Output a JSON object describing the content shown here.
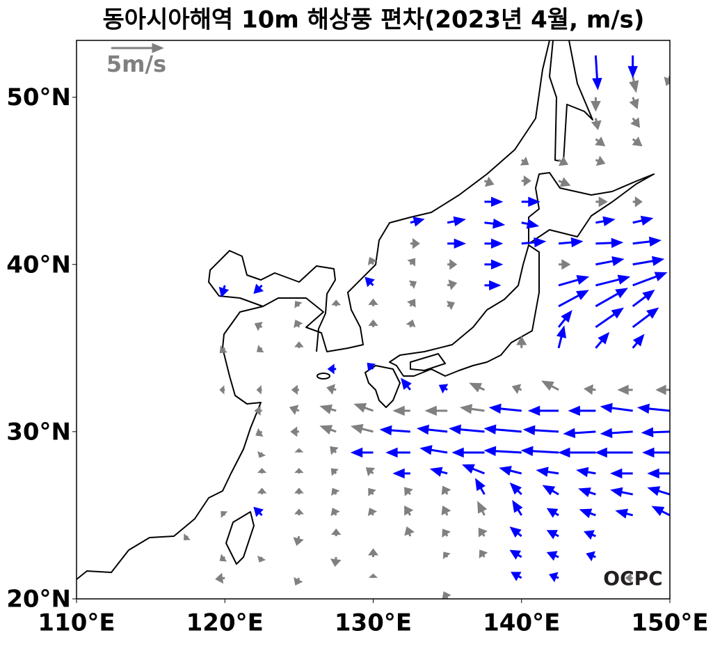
{
  "chart_data": {
    "type": "quiver",
    "title": "동아시아해역 10m 해상풍 편차(2023년 4월, m/s)",
    "xlim": [
      110,
      150
    ],
    "ylim": [
      20,
      53.4
    ],
    "xticks": [
      {
        "value": 110,
        "label": "110°E"
      },
      {
        "value": 120,
        "label": "120°E"
      },
      {
        "value": 130,
        "label": "130°E"
      },
      {
        "value": 140,
        "label": "140°E"
      },
      {
        "value": 150,
        "label": "150°E"
      }
    ],
    "yticks": [
      {
        "value": 20,
        "label": "20°N"
      },
      {
        "value": 30,
        "label": "30°N"
      },
      {
        "value": 40,
        "label": "40°N"
      },
      {
        "value": 50,
        "label": "50°N"
      }
    ],
    "reference_vector": {
      "label": "5m/s",
      "u": 5,
      "color": "#808080"
    },
    "watermark": "OCPC",
    "series": [
      {
        "color": "#808080",
        "x": [
          147.5,
          150,
          145,
          147.5,
          145,
          147.5,
          145,
          147.5,
          142.5,
          145,
          140,
          137.5,
          140,
          142.5,
          145,
          147.5,
          132.5,
          130,
          132.5,
          135,
          142.5,
          132.5,
          135,
          125,
          127.5,
          130,
          132.5,
          135,
          122.5,
          125,
          130,
          132.5,
          140,
          122.5,
          125,
          120,
          120,
          122.5,
          125,
          127.5,
          137.5,
          140,
          142.5,
          145,
          147.5,
          150,
          122.5,
          125,
          127.5,
          130,
          132.5,
          135,
          137.5,
          122.5,
          125,
          127.5,
          130,
          122.5,
          125,
          127.5,
          122.5,
          125,
          127.5,
          130,
          122.5,
          125,
          127.5,
          130,
          132.5,
          135,
          120,
          125,
          127.5,
          130,
          132.5,
          135,
          137.5,
          117.5,
          125,
          127.5,
          132.5,
          135,
          137.5,
          120,
          122.5,
          127.5,
          130,
          135,
          137.5,
          120,
          125,
          130,
          147.5,
          125,
          137.5,
          135
        ],
        "y": [
          51.25,
          51.25,
          50,
          50,
          48.75,
          48.75,
          47.5,
          47.5,
          46.25,
          46.25,
          46.25,
          45,
          45,
          45,
          43.75,
          43.75,
          41.25,
          40,
          40,
          40,
          40,
          38.75,
          38.75,
          37.5,
          37.5,
          37.5,
          37.5,
          37.5,
          36.25,
          36.25,
          36.25,
          36.25,
          35,
          35,
          35,
          35,
          32.5,
          32.5,
          32.5,
          32.5,
          32.5,
          32.5,
          32.5,
          32.5,
          32.5,
          32.5,
          31.25,
          31.25,
          31.25,
          31.25,
          31.25,
          31.25,
          31.25,
          30,
          30,
          30,
          30,
          28.75,
          28.75,
          28.75,
          27.5,
          27.5,
          27.5,
          27.5,
          26.25,
          26.25,
          26.25,
          26.25,
          26.25,
          26.25,
          25,
          25,
          25,
          25,
          25,
          25,
          25,
          23.75,
          23.75,
          23.75,
          23.75,
          23.75,
          23.75,
          22.5,
          22.5,
          22.5,
          22.5,
          22.5,
          22.5,
          21.25,
          21.25,
          21.25,
          21.25,
          20,
          20,
          20
        ],
        "u": [
          0.3,
          -0.3,
          0,
          0.4,
          0.2,
          0.6,
          0.8,
          0.8,
          0.8,
          0.8,
          0.6,
          0.8,
          0.8,
          1,
          1,
          0.8,
          0.8,
          -0.3,
          0.4,
          0.8,
          1,
          0.5,
          0.8,
          -0.3,
          0,
          0,
          0.4,
          0.6,
          -0.6,
          -0.3,
          0,
          0.2,
          0,
          -0.4,
          0,
          -0.4,
          -0.4,
          -0.4,
          -0.6,
          -0.8,
          -1.3,
          -0.8,
          -1.5,
          -1,
          -1.3,
          -1.2,
          -0.6,
          -0.8,
          -1.4,
          -1.7,
          -1.5,
          -2,
          -2.2,
          -0.5,
          -0.7,
          -1.4,
          -2,
          -0.2,
          0,
          -0.5,
          0,
          0,
          -0.4,
          -0.6,
          0,
          0,
          -0.3,
          -0.4,
          -0.5,
          -0.4,
          -0.3,
          0,
          -0.3,
          -0.3,
          -0.5,
          -0.4,
          -0.6,
          -0.3,
          -0.2,
          0,
          -0.3,
          -0.4,
          -0.5,
          -0.4,
          -0.2,
          -0.1,
          0,
          -0.3,
          -0.4,
          -0.8,
          -0.3,
          0,
          -0.6,
          -0.2,
          -0.1,
          -0.3
        ],
        "v": [
          -1.4,
          -0.8,
          -1.2,
          -1,
          -1,
          -0.8,
          -0.6,
          -0.6,
          -0.4,
          -0.3,
          -0.4,
          -0.3,
          0,
          -0.4,
          0,
          0,
          0,
          0.6,
          0.5,
          0,
          0,
          0.3,
          0.2,
          0.4,
          0.5,
          0.6,
          0.6,
          0.3,
          0.3,
          0.6,
          0.6,
          0.6,
          1,
          -0.3,
          0.5,
          -0.4,
          0,
          0,
          0,
          0.2,
          0.6,
          0.3,
          0.8,
          0.1,
          0,
          0,
          0,
          0.3,
          0.4,
          0.6,
          0,
          0,
          0.3,
          -0.3,
          0,
          0.5,
          0.5,
          -0.4,
          0.3,
          0.5,
          0.4,
          0.4,
          0.4,
          0.5,
          0.5,
          0.5,
          0.5,
          0.5,
          0.6,
          0.7,
          0.3,
          0.5,
          0.6,
          0.6,
          0.8,
          0.8,
          1.2,
          -0.3,
          -0.8,
          0.6,
          0.8,
          0.6,
          0.7,
          -0.3,
          -0.4,
          -0.8,
          0.7,
          0.4,
          0.6,
          -0.1,
          -0.6,
          0.3,
          0,
          -0.8,
          -0.5,
          0.6
        ]
      },
      {
        "color": "#0000ff",
        "x": [
          145,
          147.5,
          137.5,
          140,
          132.5,
          135,
          137.5,
          140,
          145,
          147.5,
          135,
          137.5,
          140,
          142.5,
          145,
          147.5,
          137.5,
          145,
          147.5,
          120,
          122.5,
          130,
          137.5,
          142.5,
          145,
          147.5,
          142.5,
          145,
          147.5,
          142.5,
          145,
          147.5,
          142.5,
          145,
          147.5,
          130,
          127.5,
          132.5,
          135,
          140,
          142.5,
          145,
          147.5,
          150,
          132.5,
          135,
          137.5,
          140,
          142.5,
          145,
          147.5,
          150,
          130,
          132.5,
          135,
          137.5,
          140,
          142.5,
          145,
          147.5,
          150,
          132.5,
          135,
          137.5,
          140,
          142.5,
          145,
          147.5,
          150,
          137.5,
          140,
          142.5,
          145,
          147.5,
          150,
          122.5,
          140,
          142.5,
          145,
          147.5,
          150,
          140,
          142.5,
          145,
          140,
          142.5,
          145,
          140,
          142.5
        ],
        "y": [
          52.5,
          52.5,
          43.75,
          43.75,
          42.5,
          42.5,
          42.5,
          42.5,
          42.5,
          42.5,
          41.25,
          41.25,
          41.25,
          41.25,
          41.25,
          41.25,
          40,
          40,
          40,
          38.75,
          38.75,
          38.75,
          38.75,
          38.75,
          38.75,
          38.75,
          37.5,
          37.5,
          37.5,
          36.25,
          36.25,
          36.25,
          35,
          35,
          35,
          33.75,
          33.75,
          32.5,
          32.5,
          31.25,
          31.25,
          31.25,
          31.25,
          31.25,
          30,
          30,
          30,
          30,
          30,
          30,
          30,
          30,
          28.75,
          28.75,
          28.75,
          28.75,
          28.75,
          28.75,
          28.75,
          28.75,
          28.75,
          27.5,
          27.5,
          27.5,
          27.5,
          27.5,
          27.5,
          27.5,
          27.5,
          26.25,
          26.25,
          26.25,
          26.25,
          26.25,
          26.25,
          25,
          25,
          25,
          25,
          25,
          25,
          23.75,
          23.75,
          23.75,
          22.5,
          22.5,
          22.5,
          21.25,
          21.25
        ],
        "u": [
          0.2,
          0,
          1.6,
          1.6,
          1.2,
          1.6,
          1.8,
          1.5,
          1.7,
          1.8,
          1.6,
          1.6,
          2.2,
          2.2,
          2.5,
          2.6,
          1.6,
          2.6,
          2.9,
          -0.3,
          -0.7,
          -0.7,
          1.4,
          2.8,
          3.2,
          3.2,
          2.8,
          3,
          2,
          1.2,
          2.6,
          2.4,
          0.5,
          1.2,
          1,
          -0.5,
          -0.7,
          -0.8,
          -0.7,
          -3,
          -2.8,
          -2.5,
          -3,
          -3,
          -2.8,
          -2.8,
          -3.3,
          -3.5,
          -3.3,
          -3,
          -3,
          -2.6,
          -2,
          -2.2,
          -2.5,
          -3,
          -3.5,
          -3.5,
          -3.5,
          -3.5,
          -2.5,
          -1.5,
          -1.5,
          -2,
          -2,
          -2,
          -1.7,
          -2,
          -2,
          -0.8,
          -1,
          -1.4,
          -1.5,
          -2,
          -2,
          -0.7,
          -0.8,
          -1,
          -1.4,
          -1.5,
          -1.6,
          -1,
          -1,
          -1,
          -1,
          -1,
          -0.8,
          -0.9,
          -0.8
        ],
        "v": [
          -3.2,
          -2,
          0,
          0,
          0.3,
          0.3,
          -0.2,
          -0.3,
          0.3,
          0.4,
          0,
          0,
          0.2,
          0.2,
          0.1,
          0.3,
          0,
          0.5,
          0.5,
          -1,
          -0.7,
          0.7,
          0,
          0.8,
          0.8,
          1.2,
          1.5,
          1.7,
          1.5,
          1.5,
          1.8,
          1.8,
          2,
          1.4,
          1.2,
          0.5,
          0,
          1,
          0.4,
          0.3,
          0,
          0,
          0.4,
          0.3,
          0.2,
          0.3,
          0.3,
          0.3,
          0.2,
          -0.2,
          -0.2,
          -0.1,
          0,
          0,
          0.4,
          0,
          0.2,
          0.2,
          0,
          0,
          0,
          0,
          0.4,
          0.8,
          0.5,
          0.3,
          0.3,
          0,
          0,
          1.4,
          1,
          0.8,
          0.5,
          0.4,
          0.6,
          0.7,
          1.3,
          0.6,
          0.5,
          0.4,
          0.8,
          0.8,
          0.5,
          0.4,
          0.6,
          0.4,
          0.3,
          0.5,
          0.3
        ]
      }
    ]
  }
}
